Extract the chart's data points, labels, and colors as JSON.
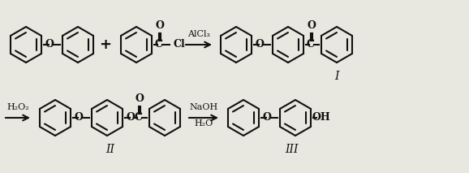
{
  "bg_color": "#e8e8e0",
  "line_color": "#111111",
  "text_color": "#111111",
  "figsize": [
    5.78,
    2.13
  ],
  "dpi": 100,
  "reaction1_reagent": "AlCl₃",
  "reaction2_reagent": "H₂O₂",
  "reaction3_reagent1": "NaOH",
  "reaction3_reagent2": "H₂O",
  "label_I": "I",
  "label_II": "II",
  "label_III": "III"
}
